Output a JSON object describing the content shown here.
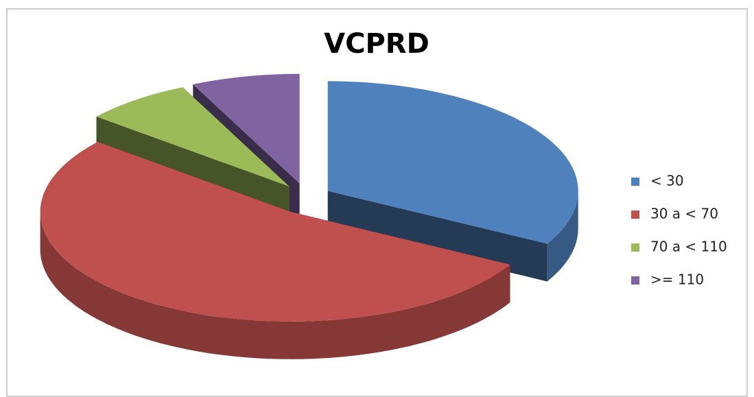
{
  "chart_data": {
    "type": "pie",
    "title": "VCPRD",
    "categories": [
      "< 30",
      "30 a < 70",
      "70 a < 110",
      ">= 110"
    ],
    "values": [
      33,
      53,
      7,
      7
    ],
    "colors": [
      "#4f81bd",
      "#c0504d",
      "#9bbb59",
      "#8064a2"
    ],
    "legend": "right"
  }
}
